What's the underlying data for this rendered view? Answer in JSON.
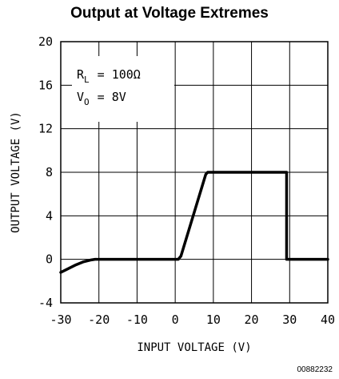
{
  "title": "Output at Voltage Extremes",
  "figure_code": "00882232",
  "chart_data": {
    "type": "line",
    "title": "Output at Voltage Extremes",
    "xlabel": "INPUT VOLTAGE (V)",
    "ylabel": "OUTPUT VOLTAGE (V)",
    "xlim": [
      -30,
      40
    ],
    "ylim": [
      -4,
      20
    ],
    "xticks": [
      -30,
      -20,
      -10,
      0,
      10,
      20,
      30,
      40
    ],
    "yticks": [
      -4,
      0,
      4,
      8,
      12,
      16,
      20
    ],
    "grid": true,
    "series": [
      {
        "x": [
          -30,
          -28,
          -26,
          -24,
          -22,
          -21,
          0,
          0.8,
          1.5,
          8,
          8.5,
          29,
          29.2,
          29.2,
          40
        ],
        "y": [
          -1.2,
          -0.85,
          -0.5,
          -0.22,
          -0.05,
          0,
          0,
          0,
          0.3,
          7.8,
          8,
          8,
          8,
          0,
          0
        ]
      }
    ],
    "annotations": [
      {
        "text": "R",
        "sub": "L",
        "value": "= 100Ω"
      },
      {
        "text": "V",
        "sub": "O",
        "value": "= 8V"
      }
    ]
  }
}
